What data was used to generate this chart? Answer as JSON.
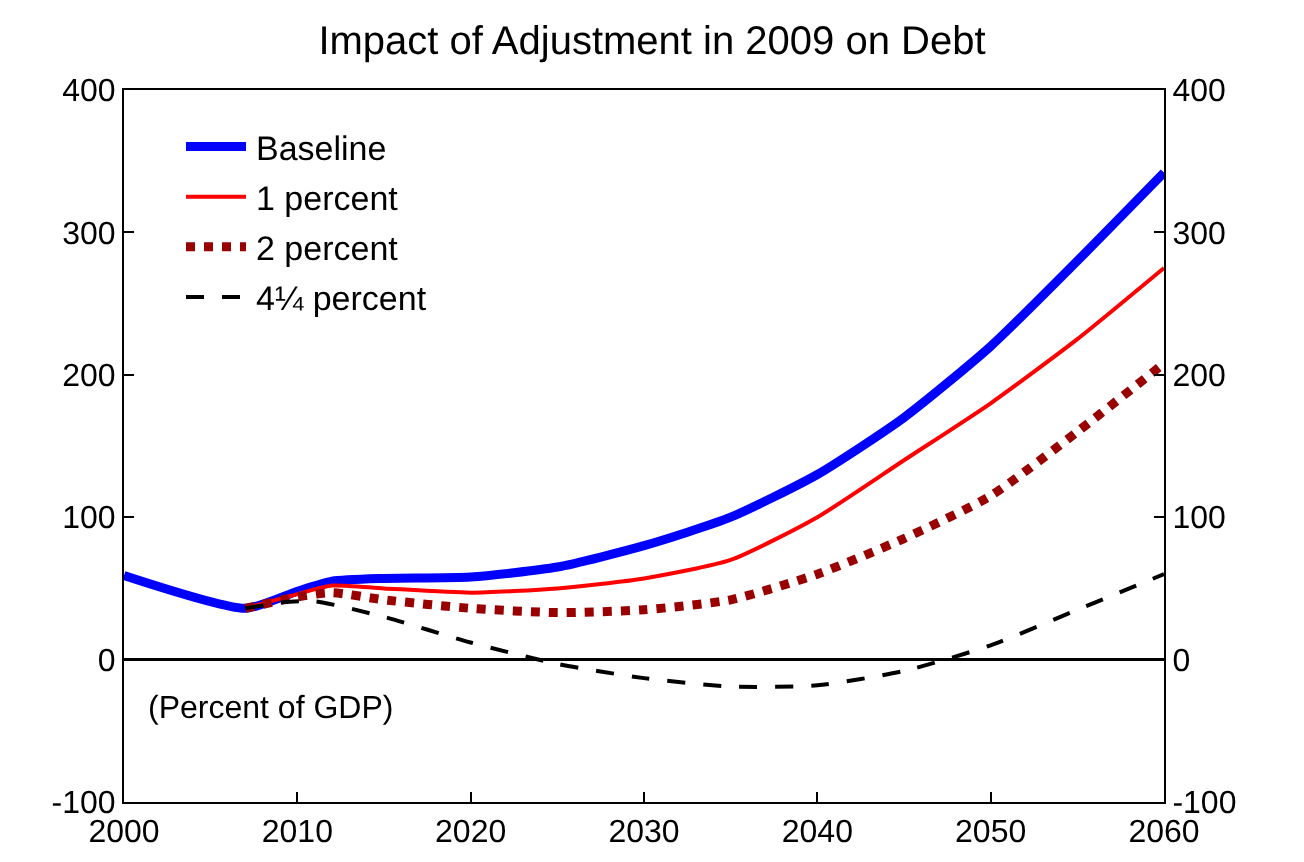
{
  "chart_data": {
    "type": "line",
    "title": "Impact of Adjustment in 2009 on Debt",
    "xlim": [
      2000,
      2060
    ],
    "xticks": [
      2000,
      2010,
      2020,
      2030,
      2040,
      2050,
      2060
    ],
    "ylim": [
      -100,
      400
    ],
    "yticks": [
      -100,
      0,
      100,
      200,
      300,
      400
    ],
    "y2lim": [
      -100,
      400
    ],
    "y2ticks": [
      -100,
      0,
      100,
      200,
      300,
      400
    ],
    "grid": false,
    "legend": "top left",
    "marker": "none",
    "series": [
      {
        "name": "Baseline",
        "color": "#0000ff",
        "line_style": "solid",
        "x": [
          2000,
          2007,
          2010,
          2012,
          2015,
          2020,
          2025,
          2030,
          2035,
          2040,
          2045,
          2050,
          2055,
          2060
        ],
        "values": [
          59,
          36,
          48,
          55,
          57,
          58,
          65,
          80,
          100,
          130,
          170,
          220,
          280,
          342
        ]
      },
      {
        "name": "1 percent",
        "color": "#ff0000",
        "line_style": "solid",
        "x": [
          2007,
          2010,
          2012,
          2015,
          2020,
          2025,
          2030,
          2035,
          2040,
          2045,
          2050,
          2055,
          2060
        ],
        "values": [
          36,
          46,
          52,
          50,
          47,
          50,
          57,
          70,
          100,
          140,
          180,
          225,
          275
        ]
      },
      {
        "name": "2 percent",
        "color": "#990000",
        "line_style": "dotted",
        "x": [
          2007,
          2010,
          2012,
          2015,
          2020,
          2025,
          2030,
          2035,
          2040,
          2045,
          2050,
          2055,
          2060
        ],
        "values": [
          36,
          44,
          47,
          42,
          36,
          33,
          35,
          42,
          60,
          85,
          115,
          160,
          208
        ]
      },
      {
        "name": "4¼ percent",
        "color": "#000000",
        "line_style": "dashed",
        "x": [
          2007,
          2009,
          2011,
          2015,
          2020,
          2025,
          2030,
          2035,
          2040,
          2045,
          2050,
          2055,
          2060
        ],
        "values": [
          36,
          40,
          41,
          30,
          12,
          -3,
          -13,
          -19,
          -18,
          -8,
          10,
          35,
          60
        ]
      }
    ],
    "ref_lines": [
      {
        "axis": "y",
        "value": 0,
        "color": "#000000"
      }
    ],
    "annotations": [
      "(Percent of GDP)"
    ]
  }
}
